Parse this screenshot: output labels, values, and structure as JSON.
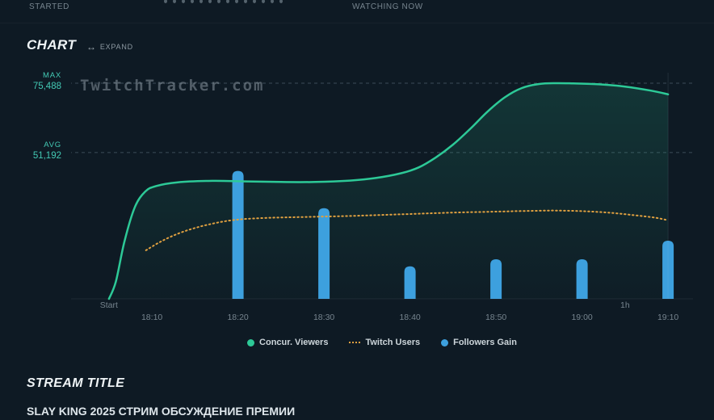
{
  "header": {
    "started_label": "STARTED",
    "watching_label": "WATCHING NOW",
    "dots_count": 14
  },
  "chart_section": {
    "title": "CHART",
    "expand_label": "EXPAND",
    "watermark": "TwitchTracker.com"
  },
  "stream_section": {
    "heading": "STREAM TITLE",
    "title": "SLAY KING 2025 СТРИМ ОБСУЖДЕНИЕ ПРЕМИИ"
  },
  "colors": {
    "background": "#0e1a24",
    "viewers_line": "#2dc997",
    "twitch_users_line": "#dfa040",
    "followers_bar": "#3da0de",
    "stat_teal": "#43c9b4",
    "muted_text": "#76848e",
    "grid_line": "#3c4c58"
  },
  "chart_data": {
    "type": "line",
    "title": "",
    "ylim": [
      0,
      75488
    ],
    "grid": "dashed-reference-lines-only",
    "legend_position": "bottom-center",
    "stats": {
      "max_label": "MAX",
      "max_value": "75,488",
      "avg_label": "AVG",
      "avg_value": "51,192"
    },
    "reference_lines": [
      {
        "name": "max",
        "value": 75488
      },
      {
        "name": "avg",
        "value": 51192
      }
    ],
    "x_axis": {
      "unit": "minutes_after_18:00",
      "upper_labels": [
        {
          "label": "Start",
          "minute": 5
        },
        {
          "label": "1h",
          "minute": 65
        }
      ],
      "ticks": [
        {
          "label": "18:10",
          "minute": 10
        },
        {
          "label": "18:20",
          "minute": 20
        },
        {
          "label": "18:30",
          "minute": 30
        },
        {
          "label": "18:40",
          "minute": 40
        },
        {
          "label": "18:50",
          "minute": 50
        },
        {
          "label": "19:00",
          "minute": 60
        },
        {
          "label": "19:10",
          "minute": 70
        }
      ]
    },
    "series": [
      {
        "name": "Concur. Viewers",
        "type": "line",
        "color": "#2dc997",
        "points": [
          [
            5,
            0
          ],
          [
            5.8,
            6000
          ],
          [
            6.8,
            20000
          ],
          [
            8,
            32000
          ],
          [
            9.2,
            37500
          ],
          [
            10.5,
            39500
          ],
          [
            13,
            40800
          ],
          [
            17,
            41300
          ],
          [
            21,
            41100
          ],
          [
            25,
            40900
          ],
          [
            29,
            40900
          ],
          [
            33,
            41400
          ],
          [
            36,
            42300
          ],
          [
            39,
            44000
          ],
          [
            41,
            46000
          ],
          [
            43,
            49500
          ],
          [
            45,
            54000
          ],
          [
            47,
            59500
          ],
          [
            49,
            65500
          ],
          [
            51,
            70500
          ],
          [
            53,
            73800
          ],
          [
            55,
            75200
          ],
          [
            57,
            75488
          ],
          [
            59,
            75400
          ],
          [
            62,
            75100
          ],
          [
            65,
            74300
          ],
          [
            68,
            72900
          ],
          [
            70,
            71600
          ]
        ]
      },
      {
        "name": "Twitch Users",
        "type": "dotted-line",
        "color": "#dfa040",
        "points": [
          [
            9.3,
            17000
          ],
          [
            11,
            20000
          ],
          [
            13,
            22800
          ],
          [
            15,
            24800
          ],
          [
            17,
            26300
          ],
          [
            19,
            27400
          ],
          [
            21,
            28000
          ],
          [
            24,
            28400
          ],
          [
            27,
            28600
          ],
          [
            30,
            28800
          ],
          [
            33,
            29000
          ],
          [
            36,
            29300
          ],
          [
            39,
            29600
          ],
          [
            42,
            29900
          ],
          [
            45,
            30200
          ],
          [
            48,
            30400
          ],
          [
            51,
            30600
          ],
          [
            54,
            30800
          ],
          [
            57,
            30900
          ],
          [
            60,
            30700
          ],
          [
            63,
            30200
          ],
          [
            66,
            29300
          ],
          [
            68.5,
            28400
          ],
          [
            70,
            27500
          ]
        ]
      },
      {
        "name": "Followers Gain",
        "type": "bar",
        "color": "#3da0de",
        "unit": "percent_of_plot_height",
        "points": [
          [
            20,
            55
          ],
          [
            30,
            39
          ],
          [
            40,
            14
          ],
          [
            50,
            17
          ],
          [
            60,
            17
          ],
          [
            70,
            25
          ]
        ]
      }
    ],
    "legend": [
      {
        "label": "Concur. Viewers",
        "marker": "circle",
        "color": "#2dc997"
      },
      {
        "label": "Twitch Users",
        "marker": "dotted",
        "color": "#dfa040"
      },
      {
        "label": "Followers Gain",
        "marker": "circle",
        "color": "#3da0de"
      }
    ]
  }
}
